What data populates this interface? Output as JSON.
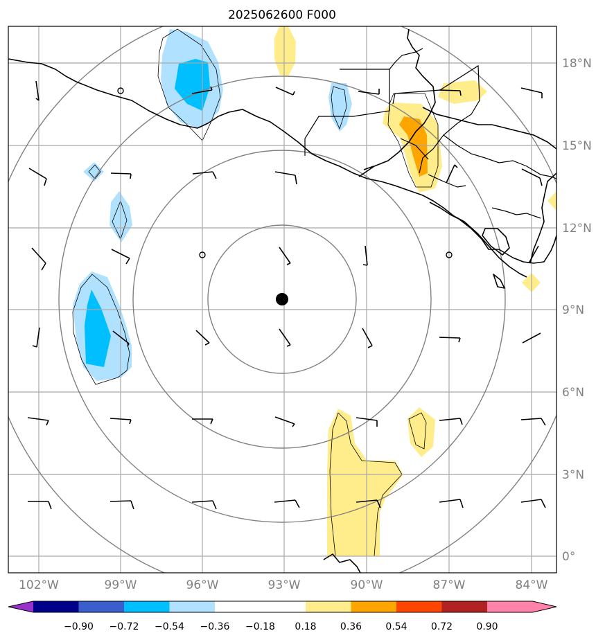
{
  "title": "2025062600 F000",
  "map": {
    "lon_labels": [
      "102°W",
      "99°W",
      "96°W",
      "93°W",
      "90°W",
      "87°W",
      "84°W"
    ],
    "lat_labels": [
      "18°N",
      "15°N",
      "12°N",
      "9°N",
      "6°N",
      "3°N",
      "0°"
    ],
    "center_marker": {
      "lon": -93,
      "lat": 9.4
    }
  },
  "colorbar": {
    "ticks": [
      "−0.90",
      "−0.72",
      "−0.54",
      "−0.36",
      "−0.18",
      "0.18",
      "0.36",
      "0.54",
      "0.72",
      "0.90"
    ],
    "colors": {
      "under": "#9932cc",
      "b1": "#00008b",
      "b2": "#3a5fcd",
      "b3": "#00bfff",
      "b4": "#b0e2ff",
      "b5": "#ffffff",
      "b6": "#ffec8b",
      "b7": "#ffa500",
      "b8": "#ff4500",
      "b9": "#b22222",
      "over": "#ff82ab"
    }
  },
  "colors": {
    "light_blue": "#b0e2ff",
    "blue": "#00bfff",
    "light_yellow": "#ffec8b",
    "orange": "#ffa500",
    "grid": "#a8a8a8",
    "ring": "#808080"
  }
}
